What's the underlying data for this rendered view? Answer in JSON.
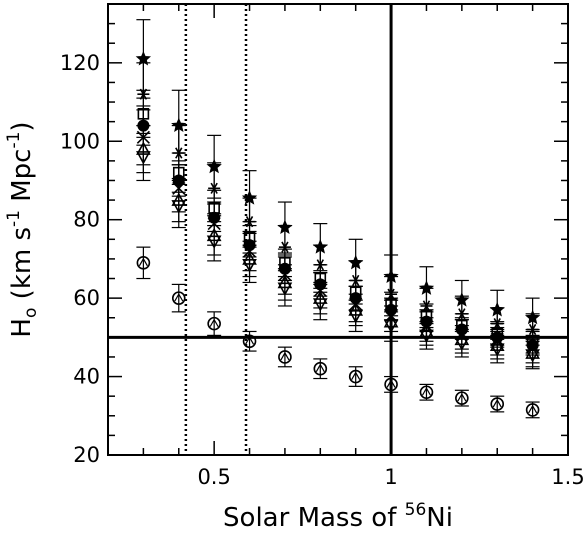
{
  "chart_data": {
    "type": "scatter",
    "title": "",
    "xlabel": "Solar Mass of ",
    "xlabel_sup": "56",
    "xlabel_tail": "Ni",
    "ylabel": "H",
    "ylabel_sub": "o",
    "ylabel_tail": " (km s",
    "ylabel_sup1": "-1",
    "ylabel_mid": " Mpc",
    "ylabel_sup2": "-1",
    "ylabel_end": ")",
    "xlim": [
      0.2,
      1.5
    ],
    "ylim": [
      20,
      135
    ],
    "x_ticks": [
      "0.5",
      "1",
      "1.5"
    ],
    "y_ticks": [
      "20",
      "40",
      "60",
      "80",
      "100",
      "120"
    ],
    "grid": false,
    "reference_lines": {
      "horizontal_solid": 50,
      "vertical_solid": 1.0,
      "vertical_dotted": [
        0.42,
        0.59
      ]
    },
    "x": [
      0.3,
      0.4,
      0.5,
      0.6,
      0.7,
      0.8,
      0.9,
      1.0,
      1.1,
      1.2,
      1.3,
      1.4
    ],
    "series": [
      {
        "marker": "filled-circle",
        "values": [
          104,
          90,
          80.5,
          73.5,
          67.5,
          63.5,
          60,
          57,
          54,
          52,
          50,
          48
        ],
        "err": [
          5,
          4,
          3.5,
          3,
          3,
          3,
          3,
          2.5,
          2.5,
          2.5,
          2.5,
          2.5
        ]
      },
      {
        "marker": "open-circle",
        "values": [
          69,
          60,
          53.5,
          49,
          45,
          42,
          40,
          38,
          36,
          34.5,
          33,
          31.5
        ],
        "err": [
          4,
          3.5,
          3,
          2.5,
          2.5,
          2.5,
          2.5,
          2,
          2,
          2,
          2,
          2
        ]
      },
      {
        "marker": "open-square",
        "values": [
          107,
          92,
          83,
          75.5,
          69,
          65,
          61.5,
          58.5,
          55.5,
          53,
          51,
          49
        ],
        "err": [
          6,
          5,
          4.5,
          4,
          3.5,
          3.5,
          3,
          3,
          3,
          3,
          3,
          3
        ]
      },
      {
        "marker": "star",
        "values": [
          121,
          104,
          93.5,
          85.5,
          78,
          73,
          69,
          65.5,
          62.5,
          59.5,
          57,
          55
        ],
        "err": [
          10,
          9,
          8,
          7,
          6.5,
          6,
          6,
          5.5,
          5.5,
          5,
          5,
          5
        ]
      },
      {
        "marker": "asterisk",
        "values": [
          112,
          97,
          88,
          79.5,
          73,
          68.5,
          64.5,
          61,
          58,
          56,
          53.5,
          52
        ],
        "err": [
          8,
          7,
          6.5,
          6,
          5.5,
          5,
          5,
          4.5,
          4.5,
          4.5,
          4,
          4
        ]
      },
      {
        "marker": "triangle",
        "values": [
          98,
          85,
          76,
          70,
          64,
          60,
          57,
          54,
          51.5,
          49.5,
          48,
          46
        ],
        "err": [
          6,
          5.5,
          5,
          4.5,
          4.5,
          4,
          4,
          4,
          3.5,
          3.5,
          3.5,
          3.5
        ]
      },
      {
        "marker": "inverted-triangle",
        "values": [
          96,
          83.5,
          74.5,
          68.5,
          62.5,
          58.5,
          55.5,
          53,
          50.5,
          48.5,
          47,
          45.5
        ],
        "err": [
          6,
          5.5,
          5,
          4.5,
          4.5,
          4,
          4,
          4,
          3.5,
          3.5,
          3.5,
          3.5
        ]
      },
      {
        "marker": "x-cross",
        "values": [
          101,
          88,
          79,
          72,
          66,
          62,
          58.5,
          55.5,
          53,
          51,
          49.5,
          47.5
        ],
        "err": [
          7,
          6,
          5.5,
          5,
          5,
          4.5,
          4.5,
          4,
          4,
          4,
          4,
          4
        ]
      }
    ]
  }
}
